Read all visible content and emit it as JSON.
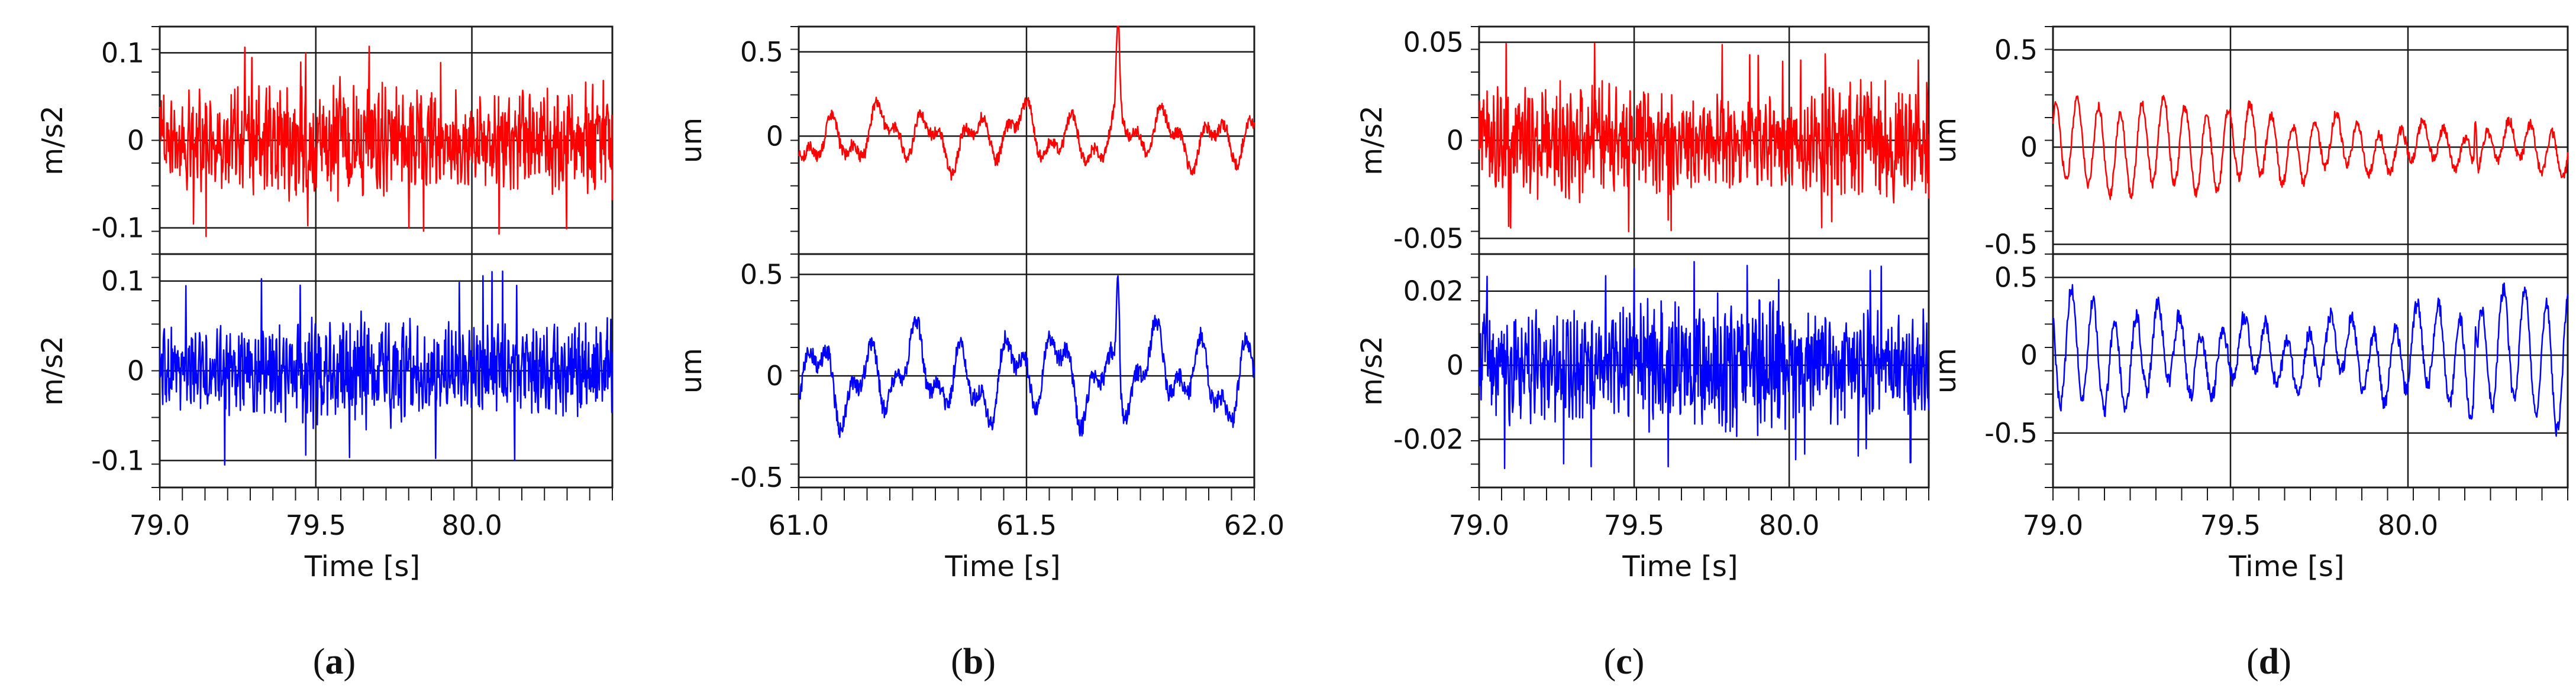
{
  "figure": {
    "colors": {
      "top_series": "#ff0000",
      "bottom_series": "#0000ff",
      "grid": "#1a1a1a",
      "frame": "#1a1a1a"
    }
  },
  "chart_data": [
    {
      "id": "a",
      "caption": {
        "open": "(",
        "letter": "a",
        "close": ")"
      },
      "type": "line",
      "xlabel": "Time [s]",
      "xlim": [
        79.0,
        80.45
      ],
      "xticks": [
        79.0,
        79.5,
        80.0
      ],
      "xtick_labels": [
        "79.0",
        "79.5",
        "80.0"
      ],
      "panels": [
        {
          "series_name": "top",
          "color": "#ff0000",
          "ylabel": "m/s2",
          "ylim": [
            -0.13,
            0.13
          ],
          "yticks": [
            -0.1,
            0,
            0.1
          ],
          "ytick_labels": [
            "-0.1",
            "0",
            "0.1"
          ],
          "signal": {
            "kind": "dense",
            "amplitude": 0.055,
            "peak": 0.11,
            "seed": 11
          }
        },
        {
          "series_name": "bottom",
          "color": "#0000ff",
          "ylabel": "m/s2",
          "ylim": [
            -0.13,
            0.13
          ],
          "yticks": [
            -0.1,
            0,
            0.1
          ],
          "ytick_labels": [
            "-0.1",
            "0",
            "0.1"
          ],
          "signal": {
            "kind": "dense",
            "amplitude": 0.05,
            "peak": 0.115,
            "seed": 23
          }
        }
      ]
    },
    {
      "id": "b",
      "caption": {
        "open": "(",
        "letter": "b",
        "close": ")"
      },
      "type": "line",
      "xlabel": "Time [s]",
      "xlim": [
        61.0,
        62.0
      ],
      "xticks": [
        61.0,
        61.5,
        62.0
      ],
      "xtick_labels": [
        "61.0",
        "61.5",
        "62.0"
      ],
      "panels": [
        {
          "series_name": "top",
          "color": "#ff0000",
          "ylabel": "um",
          "ylim": [
            -0.7,
            0.65
          ],
          "yticks": [
            0,
            0.5
          ],
          "ytick_labels": [
            "0",
            "0.5"
          ],
          "signal": {
            "kind": "wavy",
            "amplitude": 0.2,
            "peak": 0.6,
            "seed": 5
          }
        },
        {
          "series_name": "bottom",
          "color": "#0000ff",
          "ylabel": "um",
          "ylim": [
            -0.55,
            0.6
          ],
          "yticks": [
            -0.5,
            0,
            0.5
          ],
          "ytick_labels": [
            "-0.5",
            "0",
            "0.5"
          ],
          "signal": {
            "kind": "wavy",
            "amplitude": 0.25,
            "peak": 0.58,
            "seed": 9
          }
        }
      ]
    },
    {
      "id": "c",
      "caption": {
        "open": "(",
        "letter": "c",
        "close": ")"
      },
      "type": "line",
      "xlabel": "Time [s]",
      "xlim": [
        79.0,
        80.45
      ],
      "xticks": [
        79.0,
        79.5,
        80.0
      ],
      "xtick_labels": [
        "79.0",
        "79.5",
        "80.0"
      ],
      "panels": [
        {
          "series_name": "top",
          "color": "#ff0000",
          "ylabel": "m/s2",
          "ylim": [
            -0.058,
            0.058
          ],
          "yticks": [
            -0.05,
            0,
            0.05
          ],
          "ytick_labels": [
            "-0.05",
            "0",
            "0.05"
          ],
          "signal": {
            "kind": "dense",
            "amplitude": 0.024,
            "peak": 0.05,
            "seed": 31
          }
        },
        {
          "series_name": "bottom",
          "color": "#0000ff",
          "ylabel": "m/s2",
          "ylim": [
            -0.033,
            0.03
          ],
          "yticks": [
            -0.02,
            0,
            0.02
          ],
          "ytick_labels": [
            "-0.02",
            "0",
            "0.02"
          ],
          "signal": {
            "kind": "dense",
            "amplitude": 0.015,
            "peak": 0.028,
            "seed": 47
          }
        }
      ]
    },
    {
      "id": "d",
      "caption": {
        "open": "(",
        "letter": "d",
        "close": ")"
      },
      "type": "line",
      "xlabel": "Time [s]",
      "xlim": [
        79.0,
        80.45
      ],
      "xticks": [
        79.0,
        79.5,
        80.0
      ],
      "xtick_labels": [
        "79.0",
        "79.5",
        "80.0"
      ],
      "panels": [
        {
          "series_name": "top",
          "color": "#ff0000",
          "ylabel": "um",
          "ylim": [
            -0.55,
            0.62
          ],
          "yticks": [
            -0.5,
            0,
            0.5
          ],
          "ytick_labels": [
            "-0.5",
            "0",
            "0.5"
          ],
          "signal": {
            "kind": "oscillating",
            "amplitude": 0.22,
            "peak": 0.55,
            "seed": 13
          }
        },
        {
          "series_name": "bottom",
          "color": "#0000ff",
          "ylabel": "um",
          "ylim": [
            -0.85,
            0.65
          ],
          "yticks": [
            -0.5,
            0,
            0.5
          ],
          "ytick_labels": [
            "-0.5",
            "0",
            "0.5"
          ],
          "signal": {
            "kind": "oscillating",
            "amplitude": 0.42,
            "peak": 0.55,
            "seed": 17
          }
        }
      ]
    }
  ]
}
